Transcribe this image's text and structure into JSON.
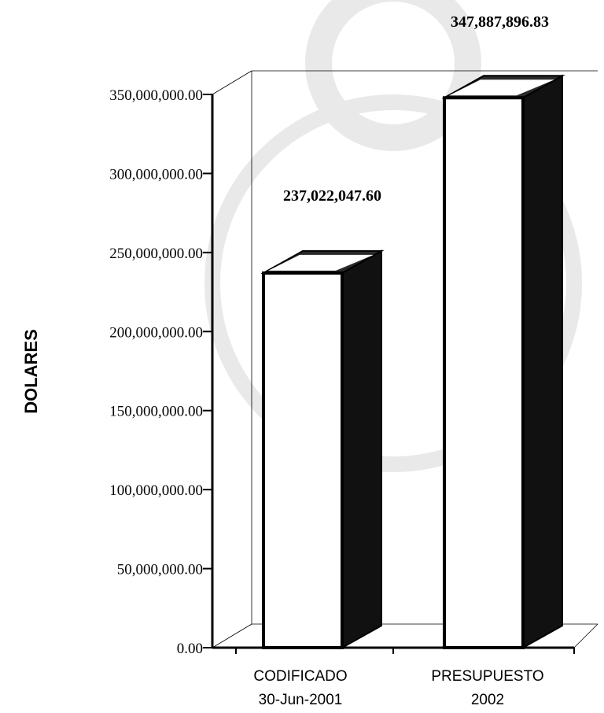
{
  "chart_data": {
    "type": "bar",
    "title": "",
    "xlabel": "",
    "ylabel": "DOLARES",
    "categories": [
      [
        "CODIFICADO",
        "30-Jun-2001"
      ],
      [
        "PRESUPUESTO",
        "2002"
      ]
    ],
    "values": [
      237022047.6,
      347887896.83
    ],
    "value_labels": [
      "237,022,047.60",
      "347,887,896.83"
    ],
    "ylim": [
      0,
      350000000
    ],
    "yticks": [
      0,
      50000000,
      100000000,
      150000000,
      200000000,
      250000000,
      300000000,
      350000000
    ],
    "ytick_labels": [
      "0.00",
      "50,000,000.00",
      "100,000,000.00",
      "150,000,000.00",
      "200,000,000.00",
      "250,000,000.00",
      "300,000,000.00",
      "350,000,000.00"
    ],
    "style": "3d-bar",
    "grid": false,
    "legend": "none",
    "colors": {
      "bar_front": "#ffffff",
      "bar_side": "#111111",
      "bar_top": "#2a2a2a",
      "axis": "#000000",
      "watermark": "#e9e9e9"
    }
  }
}
